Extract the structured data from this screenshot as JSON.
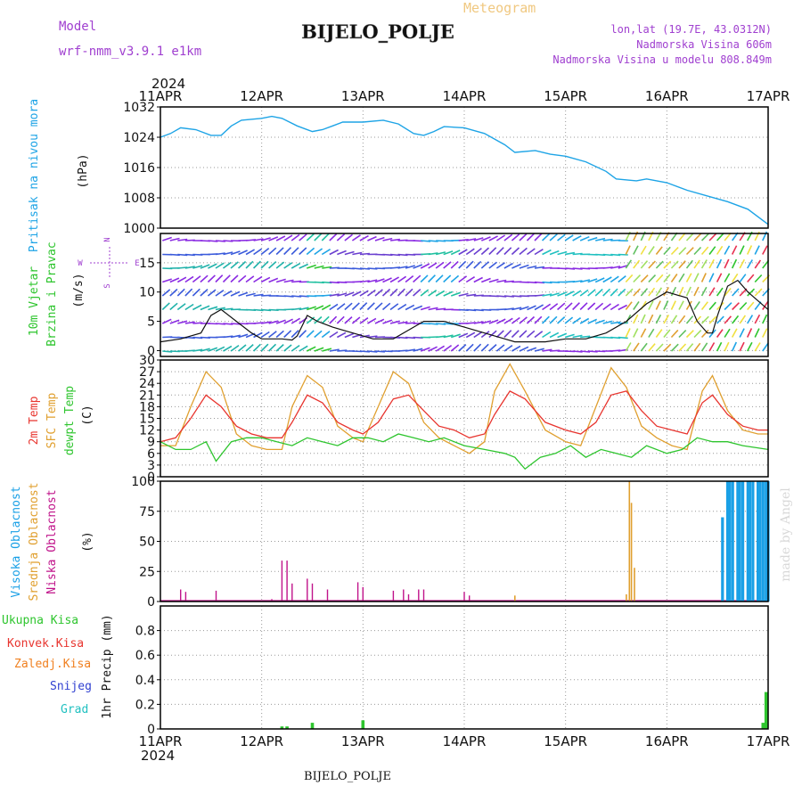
{
  "header": {
    "app_title": "Meteogram",
    "station": "BIJELO_POLJE",
    "model_label": "Model",
    "model_name": "wrf-nmm_v3.9.1 e1km",
    "lonlat": "lon,lat (19.7E, 43.0312N)",
    "elevation": "Nadmorska Visina 606m",
    "model_elevation": "Nadmorska Visina u modelu 808.849m",
    "watermark": "made by Angel",
    "footer_station": "BIJELO_POLJE"
  },
  "time_axis": {
    "year": "2024",
    "labels": [
      "11APR",
      "12APR",
      "13APR",
      "14APR",
      "15APR",
      "16APR",
      "17APR"
    ]
  },
  "colors": {
    "pressure": "#1ea4e6",
    "temp2m": "#e8352f",
    "sfc": "#e0a030",
    "dew": "#2ec52e",
    "visoka": "#1aa0e6",
    "srednja": "#e0a030",
    "niska": "#c0138a",
    "wind_label": "#2ec52e",
    "purple": "#a040d0",
    "ukupna": "#2ec52e",
    "konvek": "#e8352f",
    "zaledj": "#f08020",
    "snijeg": "#3040d0",
    "grad": "#20c0c0"
  },
  "chart_data": [
    {
      "type": "line",
      "panel": "pressure",
      "ylabel_main": "Pritisak na nivou mora",
      "ylabel_unit": "(hPa)",
      "ylim": [
        1000,
        1032
      ],
      "yticks": [
        "1000",
        "1008",
        "1016",
        "1024",
        "1032"
      ],
      "series": [
        {
          "x": [
            0,
            0.1,
            0.2,
            0.35,
            0.5,
            0.6,
            0.7,
            0.8,
            1.0,
            1.1,
            1.2,
            1.35,
            1.5,
            1.6,
            1.7,
            1.8,
            2.0,
            2.2,
            2.35,
            2.5,
            2.6,
            2.7,
            2.8,
            3.0,
            3.2,
            3.4,
            3.5,
            3.7,
            3.85,
            4.0,
            4.2,
            4.4,
            4.5,
            4.7,
            4.8,
            5.0,
            5.2,
            5.4,
            5.6,
            5.8,
            6.0
          ],
          "y": [
            1024,
            1025,
            1026.5,
            1026,
            1024.5,
            1024.5,
            1027,
            1028.5,
            1029,
            1029.5,
            1029,
            1027,
            1025.5,
            1026,
            1027,
            1028,
            1028,
            1028.5,
            1027.5,
            1025,
            1024.5,
            1025.5,
            1026.8,
            1026.5,
            1025,
            1022,
            1020,
            1020.5,
            1019.5,
            1019,
            1017.5,
            1015,
            1013,
            1012.5,
            1013,
            1012,
            1010,
            1008.5,
            1007,
            1005,
            1001
          ]
        }
      ]
    },
    {
      "type": "line",
      "panel": "wind",
      "ylabel_main": "10m Vjetar",
      "ylabel_sub": "Brzina i Pravac",
      "ylabel_unit": "(m/s)",
      "compass": {
        "n": "N",
        "s": "S",
        "e": "E",
        "w": "W"
      },
      "ylim": [
        -1,
        20
      ],
      "yticks": [
        "0",
        "5",
        "10",
        "15"
      ],
      "series": [
        {
          "x": [
            0,
            0.2,
            0.4,
            0.5,
            0.6,
            0.75,
            0.9,
            1.0,
            1.2,
            1.3,
            1.35,
            1.45,
            1.55,
            1.7,
            1.9,
            2.1,
            2.3,
            2.5,
            2.6,
            2.8,
            3.0,
            3.2,
            3.4,
            3.5,
            3.6,
            3.8,
            4.0,
            4.2,
            4.4,
            4.6,
            4.8,
            5.0,
            5.2,
            5.3,
            5.4,
            5.45,
            5.5,
            5.6,
            5.7,
            5.8,
            6.0
          ],
          "y": [
            1.5,
            2,
            3,
            6,
            7,
            5,
            3,
            2,
            2,
            1.8,
            2.5,
            6,
            5,
            4,
            3,
            2,
            2,
            4,
            5,
            5,
            4,
            3,
            2,
            1.5,
            1.5,
            1.5,
            2,
            2,
            3,
            5,
            8,
            10,
            9,
            5,
            3,
            3,
            6,
            11,
            12,
            10,
            7
          ]
        }
      ]
    },
    {
      "type": "line",
      "panel": "temperature",
      "series_names": [
        "2m Temp",
        "SFC Temp",
        "dewpt Temp"
      ],
      "ylabel_unit": "(C)",
      "ylim": [
        0,
        30
      ],
      "yticks": [
        "0",
        "3",
        "6",
        "9",
        "12",
        "15",
        "18",
        "21",
        "24",
        "27",
        "30"
      ],
      "series": [
        {
          "x": [
            0,
            0.15,
            0.3,
            0.45,
            0.6,
            0.75,
            0.9,
            1.05,
            1.2,
            1.3,
            1.45,
            1.6,
            1.75,
            1.9,
            2.0,
            2.15,
            2.3,
            2.45,
            2.6,
            2.75,
            2.9,
            3.05,
            3.2,
            3.3,
            3.45,
            3.6,
            3.8,
            4.0,
            4.15,
            4.3,
            4.45,
            4.6,
            4.75,
            4.9,
            5.05,
            5.2,
            5.35,
            5.45,
            5.6,
            5.75,
            5.9,
            6.0
          ],
          "y": [
            9,
            10,
            15,
            21,
            18,
            13,
            11,
            10,
            10,
            14,
            21,
            19,
            14,
            12,
            11,
            14,
            20,
            21,
            17,
            13,
            12,
            10,
            11,
            16,
            22,
            20,
            14,
            12,
            11,
            14,
            21,
            22,
            17,
            13,
            12,
            11,
            19,
            21,
            16,
            13,
            12,
            12
          ]
        },
        {
          "x": [
            0,
            0.15,
            0.3,
            0.45,
            0.6,
            0.75,
            0.9,
            1.05,
            1.2,
            1.3,
            1.45,
            1.6,
            1.75,
            1.9,
            2.0,
            2.15,
            2.3,
            2.45,
            2.6,
            2.75,
            2.9,
            3.05,
            3.2,
            3.3,
            3.45,
            3.6,
            3.8,
            4.0,
            4.15,
            4.3,
            4.45,
            4.6,
            4.75,
            4.9,
            5.05,
            5.2,
            5.35,
            5.45,
            5.6,
            5.75,
            5.9,
            6.0
          ],
          "y": [
            8,
            8,
            18,
            27,
            23,
            11,
            8,
            7,
            7,
            18,
            26,
            23,
            13,
            10,
            9,
            18,
            27,
            24,
            14,
            10,
            8,
            6,
            9,
            22,
            29,
            22,
            12,
            9,
            8,
            18,
            28,
            23,
            13,
            10,
            8,
            7,
            22,
            26,
            17,
            12,
            11,
            11
          ]
        },
        {
          "x": [
            0,
            0.15,
            0.3,
            0.45,
            0.55,
            0.7,
            0.85,
            1.0,
            1.15,
            1.3,
            1.45,
            1.6,
            1.75,
            1.9,
            2.05,
            2.2,
            2.35,
            2.5,
            2.65,
            2.8,
            3.0,
            3.2,
            3.4,
            3.5,
            3.6,
            3.75,
            3.9,
            4.05,
            4.2,
            4.35,
            4.5,
            4.65,
            4.8,
            5.0,
            5.15,
            5.3,
            5.45,
            5.6,
            5.75,
            6.0
          ],
          "y": [
            9,
            7,
            7,
            9,
            4,
            9,
            10,
            10,
            9,
            8,
            10,
            9,
            8,
            10,
            10,
            9,
            11,
            10,
            9,
            10,
            8,
            7,
            6,
            5,
            2,
            5,
            6,
            8,
            5,
            7,
            6,
            5,
            8,
            6,
            7,
            10,
            9,
            9,
            8,
            7
          ]
        }
      ]
    },
    {
      "type": "bar",
      "panel": "clouds",
      "series_names": [
        "Visoka Oblacnost",
        "Srednja Oblacnost",
        "Niska Oblacnost"
      ],
      "ylabel_unit": "(%)",
      "ylim": [
        0,
        100
      ],
      "yticks": [
        "0",
        "25",
        "50",
        "75",
        "100"
      ],
      "series": [
        {
          "x": [
            5.55,
            5.6,
            5.62,
            5.65,
            5.7,
            5.72,
            5.75,
            5.8,
            5.82,
            5.85,
            5.9,
            5.92,
            5.95,
            5.98,
            6.0
          ],
          "y": [
            70,
            100,
            100,
            100,
            100,
            100,
            100,
            100,
            100,
            100,
            100,
            100,
            100,
            100,
            100
          ]
        },
        {
          "x": [
            3.5,
            4.6,
            4.63,
            4.65,
            4.68
          ],
          "y": [
            5,
            6,
            100,
            82,
            28
          ]
        },
        {
          "x": [
            0.2,
            0.25,
            0.55,
            1.1,
            1.2,
            1.25,
            1.3,
            1.45,
            1.5,
            1.65,
            1.95,
            2.0,
            2.3,
            2.4,
            2.45,
            2.55,
            2.6,
            3.0,
            3.05
          ],
          "y": [
            10,
            8,
            9,
            2,
            34,
            34,
            15,
            19,
            15,
            10,
            16,
            12,
            9,
            10,
            6,
            10,
            10,
            8,
            5
          ]
        }
      ]
    },
    {
      "type": "bar",
      "panel": "precip",
      "series_names": [
        "Ukupna Kisa",
        "Konvek.Kisa",
        "Zaledj.Kisa",
        "Snijeg",
        "Grad"
      ],
      "ylabel_unit": "1hr Precip (mm)",
      "ylim": [
        0,
        1.0
      ],
      "yticks": [
        "0",
        "0.2",
        "0.4",
        "0.6",
        "0.8"
      ],
      "series": [
        {
          "x": [
            1.2,
            1.25,
            1.5,
            2.0,
            5.95,
            5.98
          ],
          "y": [
            0.02,
            0.02,
            0.05,
            0.07,
            0.05,
            0.3
          ]
        }
      ]
    }
  ]
}
